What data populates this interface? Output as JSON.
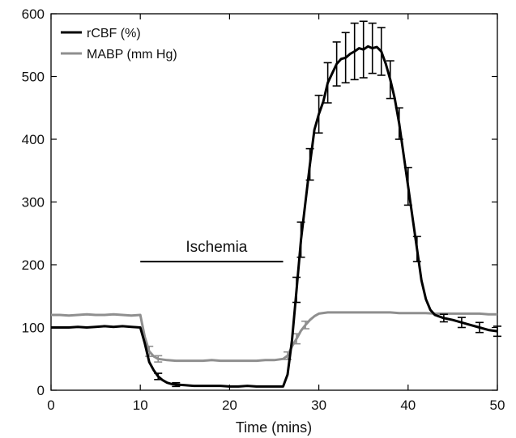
{
  "chart_data": {
    "type": "line",
    "title": "",
    "xlabel": "Time (mins)",
    "ylabel": "",
    "xlim": [
      0,
      50
    ],
    "ylim": [
      0,
      600
    ],
    "x_ticks": [
      "0",
      "10",
      "20",
      "30",
      "40",
      "50"
    ],
    "y_ticks": [
      "0",
      "100",
      "200",
      "300",
      "400",
      "500",
      "600"
    ],
    "grid": false,
    "legend": {
      "placement": "top-left"
    },
    "annotation": {
      "text": "Ischemia",
      "x_start": 10,
      "x_end": 26
    },
    "series": [
      {
        "name": "rCBF (%)",
        "color": "#000000",
        "points": [
          [
            0,
            100
          ],
          [
            1,
            100
          ],
          [
            2,
            100
          ],
          [
            3,
            101
          ],
          [
            4,
            100
          ],
          [
            5,
            101
          ],
          [
            6,
            102
          ],
          [
            7,
            101
          ],
          [
            8,
            102
          ],
          [
            9,
            101
          ],
          [
            10,
            100
          ],
          [
            10.5,
            75
          ],
          [
            11,
            45
          ],
          [
            11.5,
            32
          ],
          [
            12,
            22
          ],
          [
            12.5,
            16
          ],
          [
            13,
            12
          ],
          [
            13.5,
            10
          ],
          [
            14,
            9
          ],
          [
            15,
            8
          ],
          [
            16,
            7
          ],
          [
            17,
            7
          ],
          [
            18,
            7
          ],
          [
            19,
            7
          ],
          [
            20,
            6
          ],
          [
            21,
            6
          ],
          [
            22,
            7
          ],
          [
            23,
            6
          ],
          [
            24,
            6
          ],
          [
            25,
            6
          ],
          [
            26,
            6
          ],
          [
            26.5,
            25
          ],
          [
            27,
            80
          ],
          [
            27.5,
            160
          ],
          [
            28,
            240
          ],
          [
            28.5,
            300
          ],
          [
            29,
            360
          ],
          [
            29.5,
            415
          ],
          [
            30,
            440
          ],
          [
            30.5,
            460
          ],
          [
            31,
            490
          ],
          [
            31.5,
            505
          ],
          [
            32,
            520
          ],
          [
            32.5,
            528
          ],
          [
            33,
            530
          ],
          [
            33.5,
            536
          ],
          [
            34,
            540
          ],
          [
            34.5,
            545
          ],
          [
            35,
            543
          ],
          [
            35.5,
            548
          ],
          [
            36,
            545
          ],
          [
            36.5,
            547
          ],
          [
            37,
            540
          ],
          [
            37.5,
            520
          ],
          [
            38,
            495
          ],
          [
            38.5,
            465
          ],
          [
            39,
            425
          ],
          [
            39.5,
            375
          ],
          [
            40,
            325
          ],
          [
            40.5,
            275
          ],
          [
            41,
            225
          ],
          [
            41.5,
            175
          ],
          [
            42,
            145
          ],
          [
            42.5,
            128
          ],
          [
            43,
            120
          ],
          [
            44,
            115
          ],
          [
            45,
            112
          ],
          [
            46,
            108
          ],
          [
            47,
            104
          ],
          [
            48,
            100
          ],
          [
            49,
            96
          ],
          [
            50,
            94
          ]
        ],
        "errors": [
          [
            27.5,
            20
          ],
          [
            28,
            28
          ],
          [
            29,
            25
          ],
          [
            30,
            30
          ],
          [
            31,
            32
          ],
          [
            32,
            35
          ],
          [
            33,
            40
          ],
          [
            34,
            45
          ],
          [
            35,
            45
          ],
          [
            36,
            40
          ],
          [
            37,
            38
          ],
          [
            38,
            30
          ],
          [
            39,
            25
          ],
          [
            40,
            30
          ],
          [
            41,
            20
          ],
          [
            12,
            5
          ],
          [
            14,
            3
          ],
          [
            44,
            6
          ],
          [
            46,
            8
          ],
          [
            48,
            8
          ],
          [
            50,
            8
          ]
        ]
      },
      {
        "name": "MABP (mm Hg)",
        "color": "#8f8f8f",
        "points": [
          [
            0,
            120
          ],
          [
            1,
            120
          ],
          [
            2,
            119
          ],
          [
            3,
            120
          ],
          [
            4,
            121
          ],
          [
            5,
            120
          ],
          [
            6,
            120
          ],
          [
            7,
            121
          ],
          [
            8,
            120
          ],
          [
            9,
            119
          ],
          [
            10,
            120
          ],
          [
            10.5,
            85
          ],
          [
            11,
            62
          ],
          [
            11.5,
            54
          ],
          [
            12,
            50
          ],
          [
            13,
            48
          ],
          [
            14,
            47
          ],
          [
            15,
            47
          ],
          [
            16,
            47
          ],
          [
            17,
            47
          ],
          [
            18,
            48
          ],
          [
            19,
            47
          ],
          [
            20,
            47
          ],
          [
            21,
            47
          ],
          [
            22,
            47
          ],
          [
            23,
            47
          ],
          [
            24,
            48
          ],
          [
            25,
            48
          ],
          [
            26,
            50
          ],
          [
            26.5,
            55
          ],
          [
            27,
            70
          ],
          [
            27.5,
            82
          ],
          [
            28,
            95
          ],
          [
            28.5,
            104
          ],
          [
            29,
            112
          ],
          [
            29.5,
            118
          ],
          [
            30,
            122
          ],
          [
            31,
            124
          ],
          [
            32,
            124
          ],
          [
            33,
            124
          ],
          [
            34,
            124
          ],
          [
            35,
            124
          ],
          [
            36,
            124
          ],
          [
            37,
            124
          ],
          [
            38,
            124
          ],
          [
            39,
            123
          ],
          [
            40,
            123
          ],
          [
            41,
            123
          ],
          [
            42,
            123
          ],
          [
            43,
            122
          ],
          [
            44,
            122
          ],
          [
            45,
            122
          ],
          [
            46,
            122
          ],
          [
            47,
            122
          ],
          [
            48,
            122
          ],
          [
            49,
            121
          ],
          [
            50,
            121
          ]
        ],
        "errors": [
          [
            11,
            8
          ],
          [
            12,
            5
          ],
          [
            26.5,
            6
          ],
          [
            27.5,
            8
          ],
          [
            28.5,
            6
          ]
        ]
      }
    ]
  }
}
